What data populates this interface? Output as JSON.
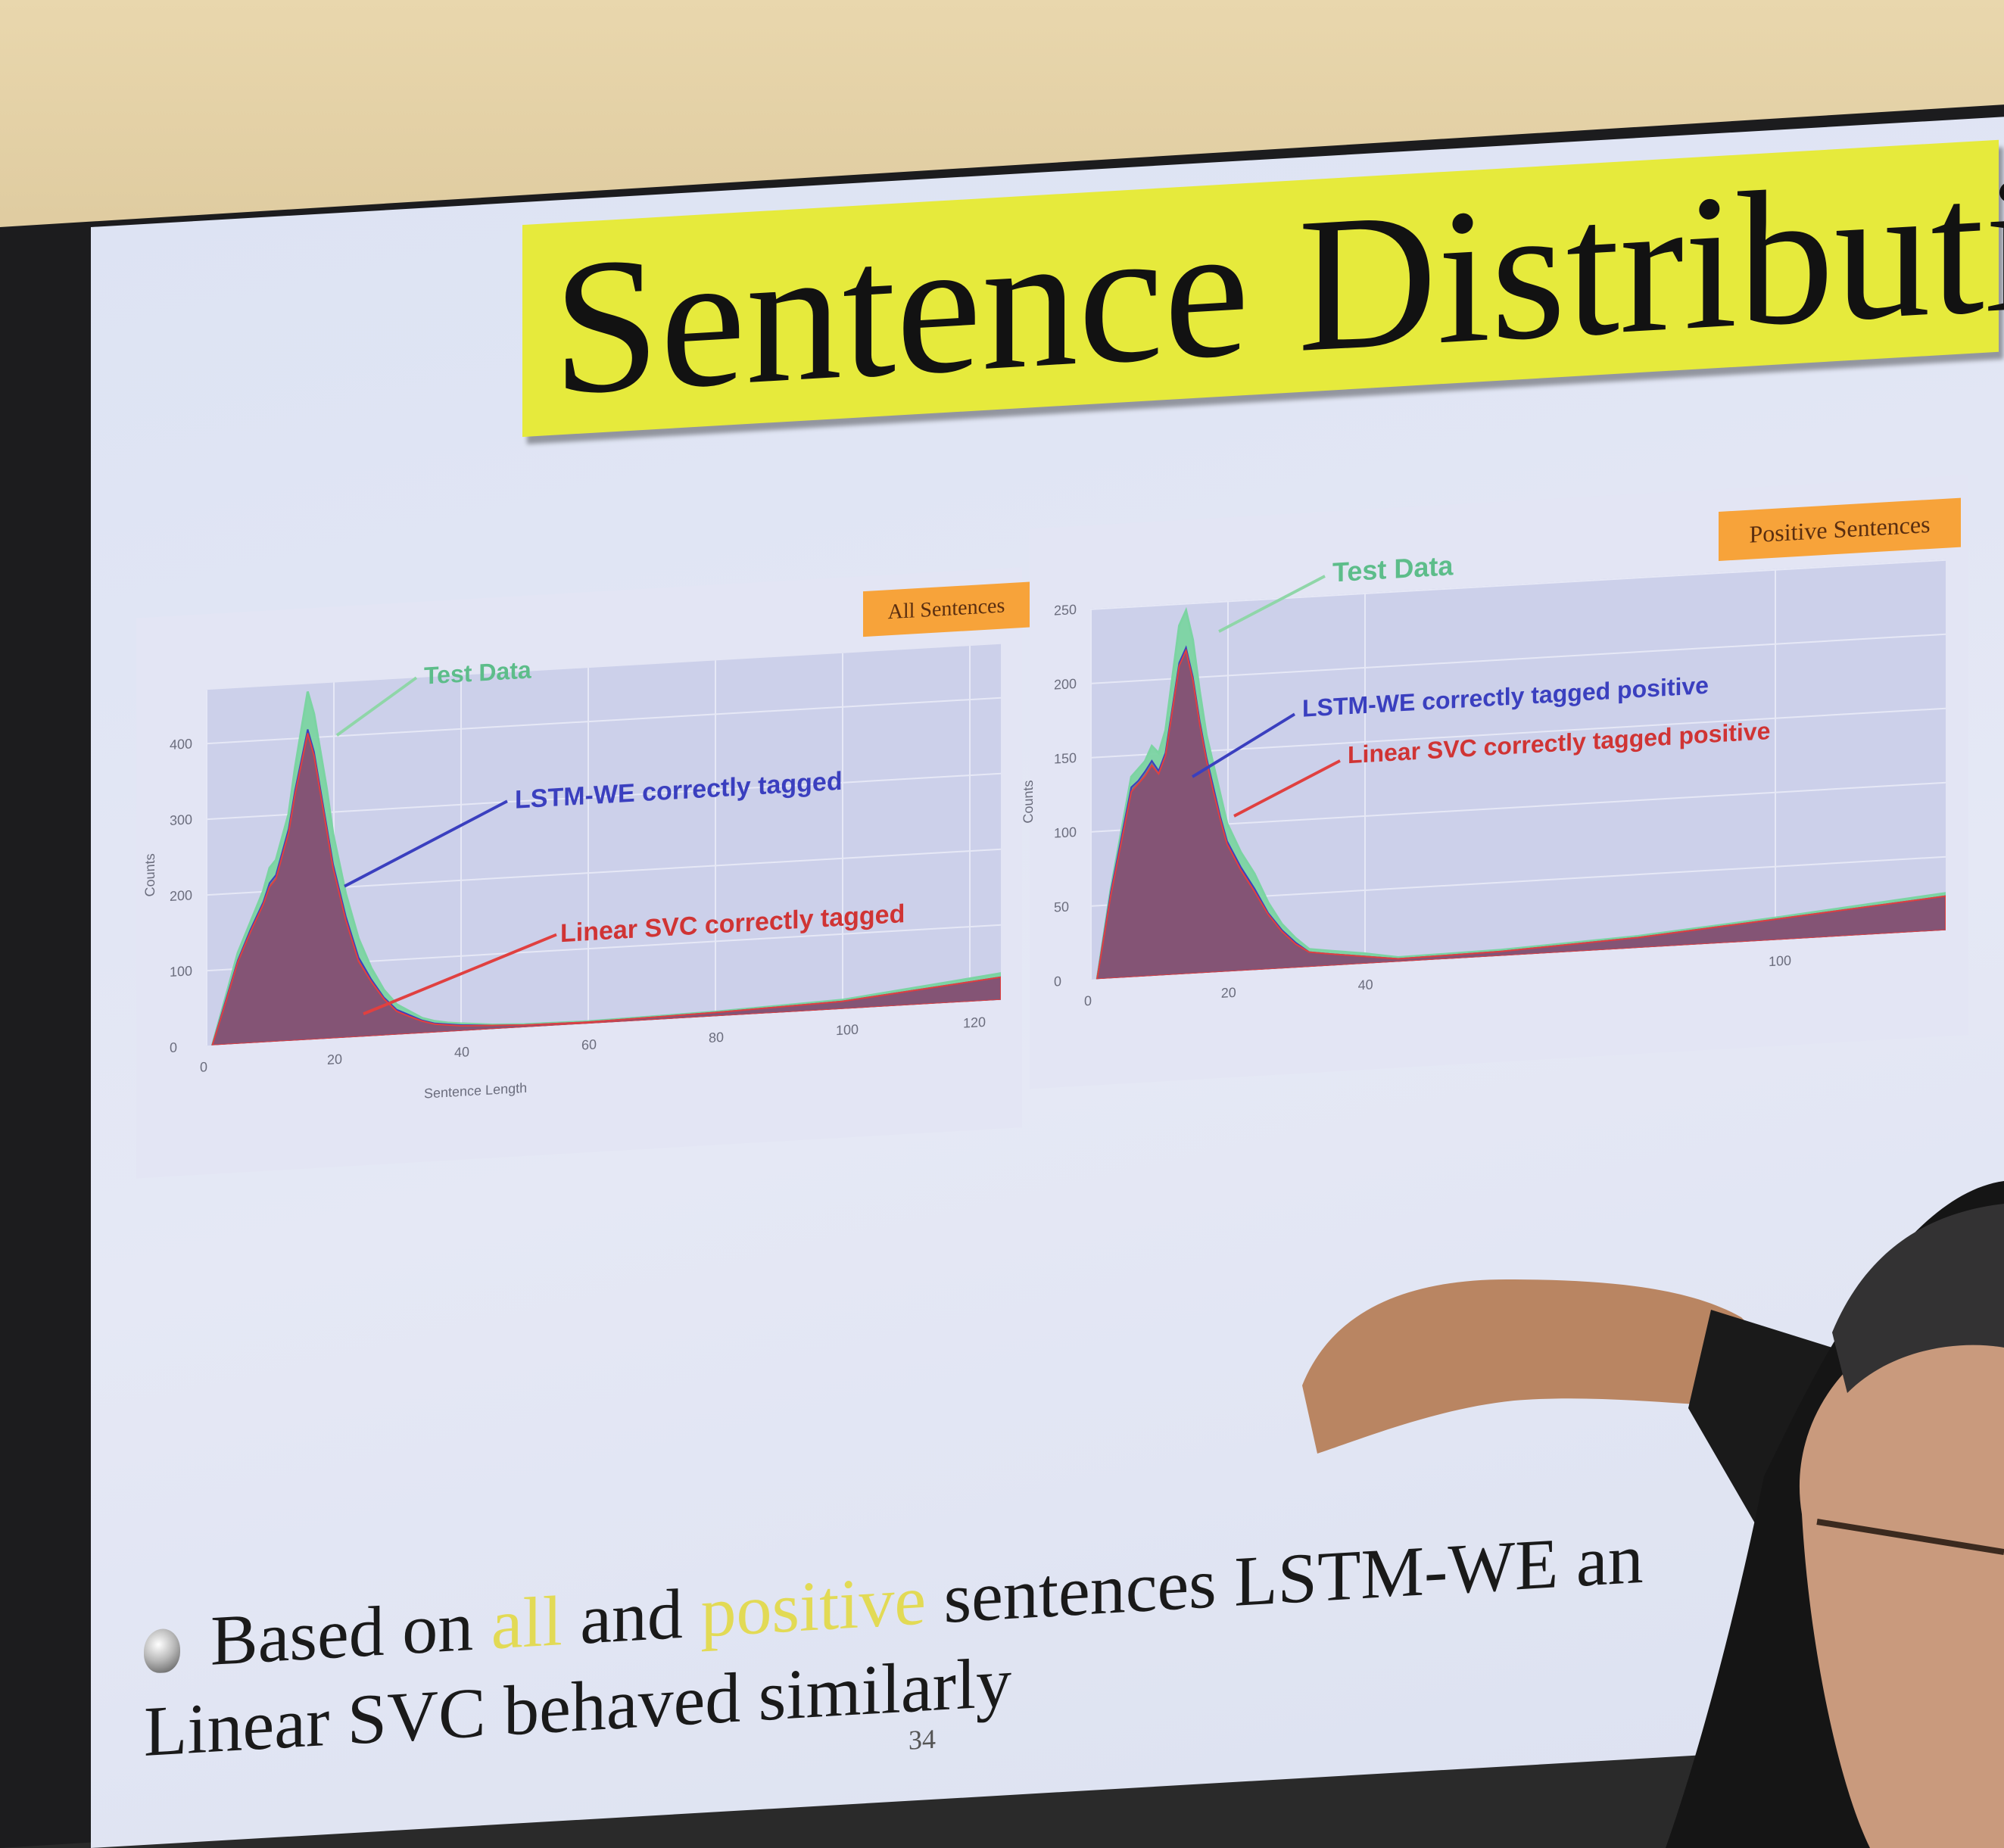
{
  "slide": {
    "title": "Sentence Distribution",
    "bullet_prefix": "Based on",
    "bullet_all": "all",
    "bullet_and": "and",
    "bullet_positive": "positive",
    "bullet_rest_line1": "sentences LSTM-WE an",
    "bullet_line2": "Linear SVC behaved similarly",
    "page_number": "34"
  },
  "colors": {
    "title_bg": "#e6ea3c",
    "test_data": "#7bd4a2",
    "lstm": "#3a3fbf",
    "svc": "#e04040",
    "tag_bg": "#f7a33a",
    "highlight": "#e2da55"
  },
  "chart_data": [
    {
      "type": "area",
      "tag": "All Sentences",
      "xlabel": "Sentence Length",
      "ylabel": "Counts",
      "xlim": [
        0,
        125
      ],
      "ylim": [
        0,
        470
      ],
      "x_ticks": [
        "0",
        "20",
        "40",
        "60",
        "80",
        "100",
        "120"
      ],
      "y_ticks": [
        "0",
        "100",
        "200",
        "300",
        "400"
      ],
      "annotations": [
        "Test Data",
        "LSTM-WE correctly tagged",
        "Linear SVC correctly tagged"
      ],
      "series": [
        {
          "name": "Test Data",
          "x": [
            1,
            3,
            5,
            7,
            9,
            10,
            11,
            12,
            13,
            14,
            15,
            16,
            17,
            18,
            19,
            20,
            22,
            24,
            26,
            28,
            30,
            32,
            34,
            36,
            38,
            40,
            45,
            50,
            60,
            80,
            100,
            125
          ],
          "values": [
            0,
            60,
            120,
            160,
            200,
            230,
            240,
            270,
            300,
            360,
            410,
            460,
            430,
            380,
            330,
            270,
            190,
            130,
            90,
            60,
            40,
            30,
            20,
            15,
            12,
            10,
            6,
            4,
            3,
            6,
            12,
            35
          ]
        },
        {
          "name": "LSTM-WE correctly tagged",
          "x": [
            1,
            3,
            5,
            7,
            9,
            10,
            11,
            12,
            13,
            14,
            15,
            16,
            17,
            18,
            19,
            20,
            22,
            24,
            26,
            28,
            30,
            32,
            34,
            36,
            38,
            40,
            45,
            50,
            60,
            80,
            100,
            125
          ],
          "values": [
            0,
            55,
            110,
            150,
            185,
            210,
            220,
            250,
            280,
            330,
            370,
            410,
            380,
            330,
            280,
            230,
            160,
            105,
            75,
            50,
            33,
            25,
            17,
            12,
            10,
            8,
            5,
            3,
            2,
            5,
            10,
            30
          ]
        },
        {
          "name": "Linear SVC correctly tagged",
          "x": [
            1,
            3,
            5,
            7,
            9,
            10,
            11,
            12,
            13,
            14,
            15,
            16,
            17,
            18,
            19,
            20,
            22,
            24,
            26,
            28,
            30,
            32,
            34,
            36,
            38,
            40,
            45,
            50,
            60,
            80,
            100,
            125
          ],
          "values": [
            0,
            53,
            108,
            147,
            182,
            205,
            215,
            245,
            275,
            325,
            365,
            405,
            375,
            325,
            275,
            225,
            155,
            100,
            72,
            48,
            31,
            23,
            16,
            11,
            9,
            7,
            5,
            3,
            2,
            5,
            10,
            30
          ]
        }
      ]
    },
    {
      "type": "area",
      "tag": "Positive Sentences",
      "xlabel": "",
      "ylabel": "Counts",
      "xlim": [
        0,
        125
      ],
      "ylim": [
        0,
        250
      ],
      "x_ticks": [
        "0",
        "20",
        "40",
        "100"
      ],
      "y_ticks": [
        "0",
        "50",
        "100",
        "150",
        "200",
        "250"
      ],
      "annotations": [
        "Test Data",
        "LSTM-WE correctly tagged positive",
        "Linear SVC correctly tagged positive"
      ],
      "series": [
        {
          "name": "Test Data",
          "x": [
            1,
            3,
            5,
            6,
            7,
            8,
            9,
            10,
            11,
            12,
            13,
            14,
            15,
            16,
            17,
            18,
            19,
            20,
            22,
            24,
            26,
            28,
            30,
            32,
            35,
            40,
            45,
            60,
            80,
            100,
            125
          ],
          "values": [
            0,
            60,
            110,
            135,
            140,
            145,
            155,
            150,
            165,
            200,
            235,
            245,
            225,
            190,
            160,
            140,
            120,
            100,
            80,
            65,
            45,
            30,
            20,
            12,
            10,
            7,
            3,
            4,
            8,
            15,
            25
          ]
        },
        {
          "name": "LSTM-WE correctly tagged positive",
          "x": [
            1,
            3,
            5,
            6,
            7,
            8,
            9,
            10,
            11,
            12,
            13,
            14,
            15,
            16,
            17,
            18,
            19,
            20,
            22,
            24,
            26,
            28,
            30,
            32,
            35,
            40,
            45,
            60,
            80,
            100,
            125
          ],
          "values": [
            0,
            58,
            105,
            128,
            132,
            138,
            145,
            138,
            150,
            180,
            210,
            220,
            200,
            170,
            145,
            125,
            105,
            88,
            70,
            55,
            38,
            26,
            17,
            10,
            8,
            5,
            2,
            3,
            7,
            14,
            23
          ]
        },
        {
          "name": "Linear SVC correctly tagged positive",
          "x": [
            1,
            3,
            5,
            6,
            7,
            8,
            9,
            10,
            11,
            12,
            13,
            14,
            15,
            16,
            17,
            18,
            19,
            20,
            22,
            24,
            26,
            28,
            30,
            32,
            35,
            40,
            45,
            60,
            80,
            100,
            125
          ],
          "values": [
            0,
            56,
            102,
            125,
            130,
            135,
            142,
            136,
            148,
            178,
            208,
            218,
            198,
            168,
            143,
            122,
            103,
            86,
            68,
            53,
            37,
            25,
            16,
            10,
            8,
            5,
            2,
            3,
            7,
            14,
            23
          ]
        }
      ]
    }
  ]
}
